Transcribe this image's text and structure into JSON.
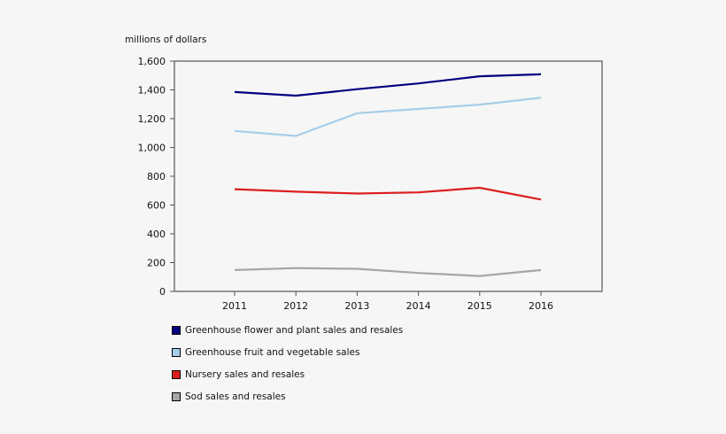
{
  "chart_data": {
    "type": "line",
    "unit_label": "millions of dollars",
    "x": [
      "2011",
      "2012",
      "2013",
      "2014",
      "2015",
      "2016"
    ],
    "ylim": [
      0,
      1600
    ],
    "yticks": [
      0,
      200,
      400,
      600,
      800,
      1000,
      1200,
      1400,
      1600
    ],
    "ytick_labels": [
      "0",
      "200",
      "400",
      "600",
      "800",
      "1,000",
      "1,200",
      "1,400",
      "1,600"
    ],
    "grid": false,
    "legend_position": "bottom-left",
    "series": [
      {
        "name": "Greenhouse flower and plant sales and resales",
        "color": "#000080",
        "values": [
          1385,
          1360,
          1405,
          1445,
          1495,
          1508
        ]
      },
      {
        "name": "Greenhouse fruit and vegetable sales",
        "color": "#a6cee9",
        "values": [
          1115,
          1080,
          1238,
          1268,
          1298,
          1345
        ]
      },
      {
        "name": "Nursery sales and resales",
        "color": "#dc1e1e",
        "values": [
          710,
          693,
          680,
          688,
          720,
          638
        ]
      },
      {
        "name": "Sod sales and resales",
        "color": "#a6a6a6",
        "values": [
          148,
          162,
          157,
          128,
          107,
          148
        ]
      }
    ]
  }
}
